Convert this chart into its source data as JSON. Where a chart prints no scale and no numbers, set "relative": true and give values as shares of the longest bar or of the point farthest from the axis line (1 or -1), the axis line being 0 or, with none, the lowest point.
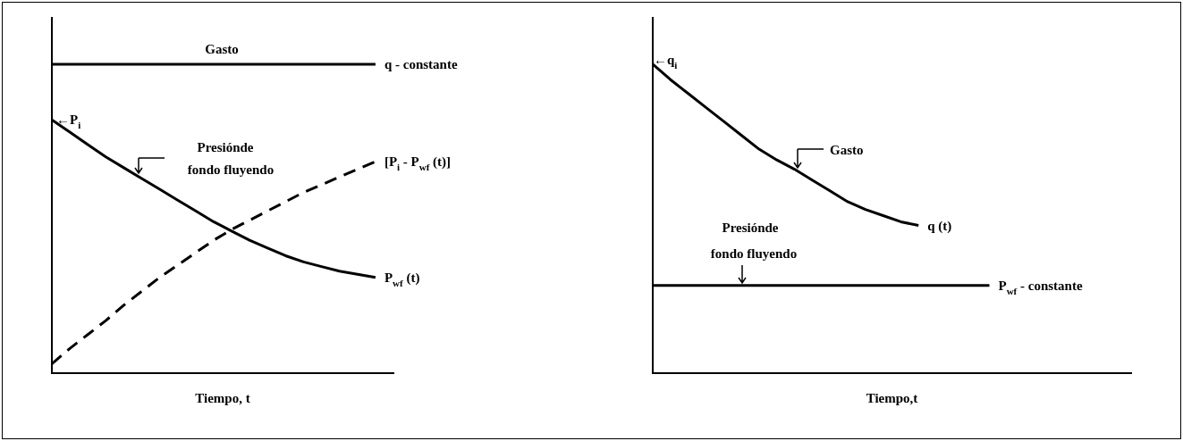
{
  "chart_data": [
    {
      "type": "line",
      "relative": true,
      "xlabel": "Tiempo, t",
      "categories": [
        null,
        null,
        null,
        null,
        null,
        null,
        null,
        null,
        null,
        null,
        null,
        null,
        null,
        null,
        null,
        null,
        null,
        null,
        null,
        null
      ],
      "series": [
        {
          "name": "q - constante",
          "color": "#000000",
          "line_style": "solid",
          "values": [
            1,
            1,
            1,
            1,
            1,
            1,
            1,
            1,
            1,
            1,
            1,
            1,
            1,
            1,
            1,
            1,
            1,
            1,
            1,
            null
          ]
        },
        {
          "name": "P$_{wf}$ (t)",
          "color": "#000000",
          "line_style": "solid",
          "values": [
            0.82,
            0.78,
            0.74,
            0.7,
            0.665,
            0.63,
            0.595,
            0.56,
            0.525,
            0.49,
            0.46,
            0.43,
            0.405,
            0.38,
            0.36,
            0.345,
            0.33,
            0.32,
            0.31,
            null
          ]
        },
        {
          "name": "[P$_{i}$ - P$_{wf}$ (t)]",
          "color": "#000000",
          "line_style": "dashed",
          "values": [
            0.03,
            0.08,
            0.125,
            0.17,
            0.22,
            0.265,
            0.31,
            0.35,
            0.39,
            0.43,
            0.465,
            0.495,
            0.525,
            0.555,
            0.585,
            0.61,
            0.635,
            0.66,
            0.685,
            null
          ]
        }
      ],
      "annotations": [
        "Gasto",
        "←P$_{i}$",
        "Presiónde",
        "fondo fluyendo"
      ]
    },
    {
      "type": "line",
      "relative": true,
      "xlabel": "Tiempo,t",
      "categories": [
        null,
        null,
        null,
        null,
        null,
        null,
        null,
        null,
        null,
        null,
        null,
        null,
        null,
        null,
        null,
        null,
        null,
        null,
        null,
        null,
        null,
        null,
        null,
        null,
        null,
        null,
        null,
        null
      ],
      "series": [
        {
          "name": "q (t)",
          "color": "#000000",
          "line_style": "solid",
          "values": [
            1,
            0.95,
            0.905,
            0.86,
            0.815,
            0.77,
            0.725,
            0.69,
            0.66,
            0.625,
            0.59,
            0.555,
            0.53,
            0.51,
            0.49,
            0.478,
            null,
            null,
            null,
            null,
            null,
            null,
            null,
            null,
            null,
            null,
            null,
            null
          ]
        },
        {
          "name": "P$_{wf}$ - constante",
          "color": "#000000",
          "line_style": "solid",
          "values": [
            0.284,
            0.284,
            0.284,
            0.284,
            0.284,
            0.284,
            0.284,
            0.284,
            0.284,
            0.284,
            0.284,
            0.284,
            0.284,
            0.284,
            0.284,
            0.284,
            0.284,
            0.284,
            0.284,
            0.284,
            null,
            null,
            null,
            null,
            null,
            null,
            null,
            null
          ]
        }
      ],
      "annotations": [
        "←q$_{i}$",
        "Gasto",
        "Presiónde",
        "fondo fluyendo"
      ]
    }
  ]
}
